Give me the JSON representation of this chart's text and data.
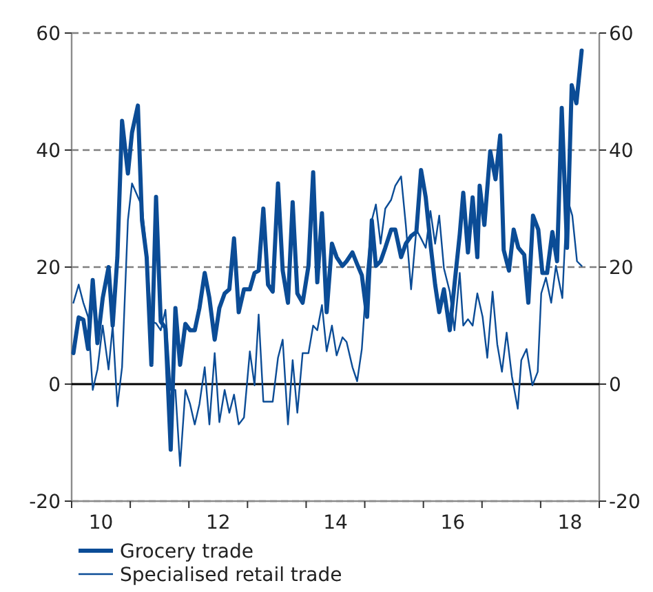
{
  "chart_data": {
    "type": "line",
    "xlim": [
      9.5,
      18.5
    ],
    "xticks": [
      {
        "value": 9.5,
        "label": null
      },
      10,
      {
        "value": 10.5,
        "label": null
      },
      {
        "value": 11.5,
        "label": null
      },
      12,
      {
        "value": 12.5,
        "label": null
      },
      {
        "value": 13.5,
        "label": null
      },
      14,
      {
        "value": 14.5,
        "label": null
      },
      {
        "value": 15.5,
        "label": null
      },
      16,
      {
        "value": 16.5,
        "label": null
      },
      {
        "value": 17.5,
        "label": null
      },
      18,
      {
        "value": 18.5,
        "label": null
      }
    ],
    "ylim": [
      -20,
      60
    ],
    "yticks": [
      -20,
      0,
      20,
      40,
      60
    ],
    "y2lim": [
      -20,
      60
    ],
    "y2ticks": [
      -20,
      0,
      20,
      40,
      60
    ],
    "grid": "y",
    "legend": "bottom",
    "ref_lines": [
      {
        "axis": "y",
        "value": 0,
        "color": "#000000",
        "line_style": "solid"
      }
    ],
    "series": [
      {
        "name": "Grocery trade",
        "color": "#0b4c96",
        "x": [
          9.53,
          9.62,
          9.7,
          9.78,
          9.86,
          9.94,
          10.03,
          10.13,
          10.2,
          10.28,
          10.36,
          10.46,
          10.53,
          10.63,
          10.7,
          10.78,
          10.86,
          10.94,
          11.02,
          11.1,
          11.19,
          11.27,
          11.35,
          11.44,
          11.52,
          11.6,
          11.68,
          11.77,
          11.85,
          11.94,
          12.02,
          12.11,
          12.19,
          12.27,
          12.35,
          12.44,
          12.54,
          12.62,
          12.69,
          12.77,
          12.85,
          12.93,
          13.02,
          13.1,
          13.19,
          13.27,
          13.35,
          13.44,
          13.54,
          13.62,
          13.69,
          13.77,
          13.85,
          13.94,
          14.02,
          14.12,
          14.19,
          14.29,
          14.37,
          14.45,
          14.54,
          14.62,
          14.69,
          14.77,
          14.85,
          14.95,
          15.02,
          15.12,
          15.2,
          15.29,
          15.38,
          15.46,
          15.54,
          15.62,
          15.7,
          15.77,
          15.85,
          15.95,
          16.03,
          16.12,
          16.18,
          16.26,
          16.34,
          16.42,
          16.46,
          16.54,
          16.64,
          16.73,
          16.81,
          16.87,
          16.96,
          17.04,
          17.12,
          17.22,
          17.29,
          17.37,
          17.46,
          17.53,
          17.61,
          17.7,
          17.78,
          17.86,
          17.95,
          18.03,
          18.11,
          18.2
        ],
        "values": [
          5.3,
          11.4,
          11,
          6,
          17.8,
          7,
          14.7,
          20,
          10,
          21.7,
          45,
          36,
          43,
          47.6,
          28,
          21.7,
          3.3,
          32,
          10.7,
          9.6,
          -11.2,
          13,
          3.3,
          10.3,
          9.2,
          9.2,
          13,
          19,
          14.7,
          7.6,
          13,
          15.5,
          16.2,
          24.9,
          12.3,
          16.2,
          16.2,
          19,
          19.4,
          30,
          17,
          15.8,
          34.3,
          19.4,
          13.9,
          31.1,
          15.5,
          13.9,
          20.2,
          36.2,
          17.4,
          29.2,
          12.3,
          24,
          21.7,
          20.2,
          21,
          22.5,
          20.5,
          18.6,
          11.5,
          28,
          20.2,
          21,
          23.3,
          26.4,
          26.4,
          21.7,
          24,
          25.3,
          26,
          36.6,
          31.9,
          24,
          17,
          12.3,
          16.2,
          9.2,
          17,
          25.6,
          32.7,
          22.5,
          31.9,
          21.7,
          33.9,
          27.2,
          39.8,
          35,
          42.5,
          22.9,
          19.4,
          26.4,
          23.3,
          22.1,
          13.9,
          28.8,
          26.4,
          19,
          19,
          26,
          21,
          47.2,
          23.3,
          51.1,
          48,
          57
        ]
      },
      {
        "name": "Specialised retail trade",
        "color": "#0b4c96",
        "x": [
          9.53,
          9.62,
          9.7,
          9.78,
          9.86,
          9.94,
          10.03,
          10.13,
          10.2,
          10.28,
          10.36,
          10.46,
          10.53,
          10.63,
          10.7,
          10.78,
          10.86,
          10.94,
          11.02,
          11.1,
          11.19,
          11.27,
          11.35,
          11.44,
          11.52,
          11.6,
          11.68,
          11.77,
          11.85,
          11.94,
          12.02,
          12.11,
          12.19,
          12.27,
          12.35,
          12.44,
          12.54,
          12.62,
          12.69,
          12.77,
          12.85,
          12.93,
          13.02,
          13.1,
          13.19,
          13.27,
          13.35,
          13.44,
          13.54,
          13.62,
          13.69,
          13.77,
          13.85,
          13.94,
          14.02,
          14.12,
          14.19,
          14.29,
          14.37,
          14.45,
          14.54,
          14.62,
          14.69,
          14.77,
          14.85,
          14.95,
          15.02,
          15.12,
          15.2,
          15.29,
          15.38,
          15.46,
          15.54,
          15.62,
          15.7,
          15.77,
          15.85,
          15.95,
          16.03,
          16.12,
          16.18,
          16.26,
          16.34,
          16.42,
          16.51,
          16.59,
          16.68,
          16.76,
          16.84,
          16.92,
          17.01,
          17.11,
          17.17,
          17.26,
          17.36,
          17.45,
          17.51,
          17.59,
          17.68,
          17.76,
          17.87,
          17.95,
          18.04,
          18.12,
          18.2
        ],
        "values": [
          13.9,
          17,
          13.9,
          11.5,
          -1,
          2.5,
          10,
          2.5,
          10,
          -3.8,
          2.9,
          28,
          34.3,
          32,
          30.4,
          22.5,
          10.7,
          10.4,
          9.2,
          12.7,
          -1,
          -1,
          -14,
          -1,
          -3.4,
          -6.9,
          -3.4,
          2.9,
          -6.9,
          5.3,
          -6.5,
          -1,
          -4.9,
          -1.8,
          -6.9,
          -5.7,
          5.6,
          -0.2,
          11.9,
          -3,
          -3,
          -3,
          4.5,
          7.6,
          -6.9,
          4.1,
          -4.9,
          5.3,
          5.3,
          10,
          9.2,
          13.5,
          5.6,
          10,
          4.9,
          8,
          7.2,
          2.9,
          0.5,
          6,
          19.4,
          28,
          30.7,
          24,
          30,
          31.5,
          33.9,
          35.5,
          27.2,
          16.2,
          26.4,
          24.9,
          23.3,
          29.6,
          24,
          28.8,
          19.8,
          15.8,
          9.2,
          19,
          10,
          11.1,
          10,
          15.5,
          11.5,
          4.5,
          15.8,
          6.8,
          2.1,
          8.8,
          1.3,
          -4.2,
          4.1,
          6,
          -0.2,
          2.1,
          15.5,
          18.2,
          13.9,
          20.2,
          14.7,
          31.9,
          28.8,
          21,
          20.2
        ]
      }
    ]
  }
}
